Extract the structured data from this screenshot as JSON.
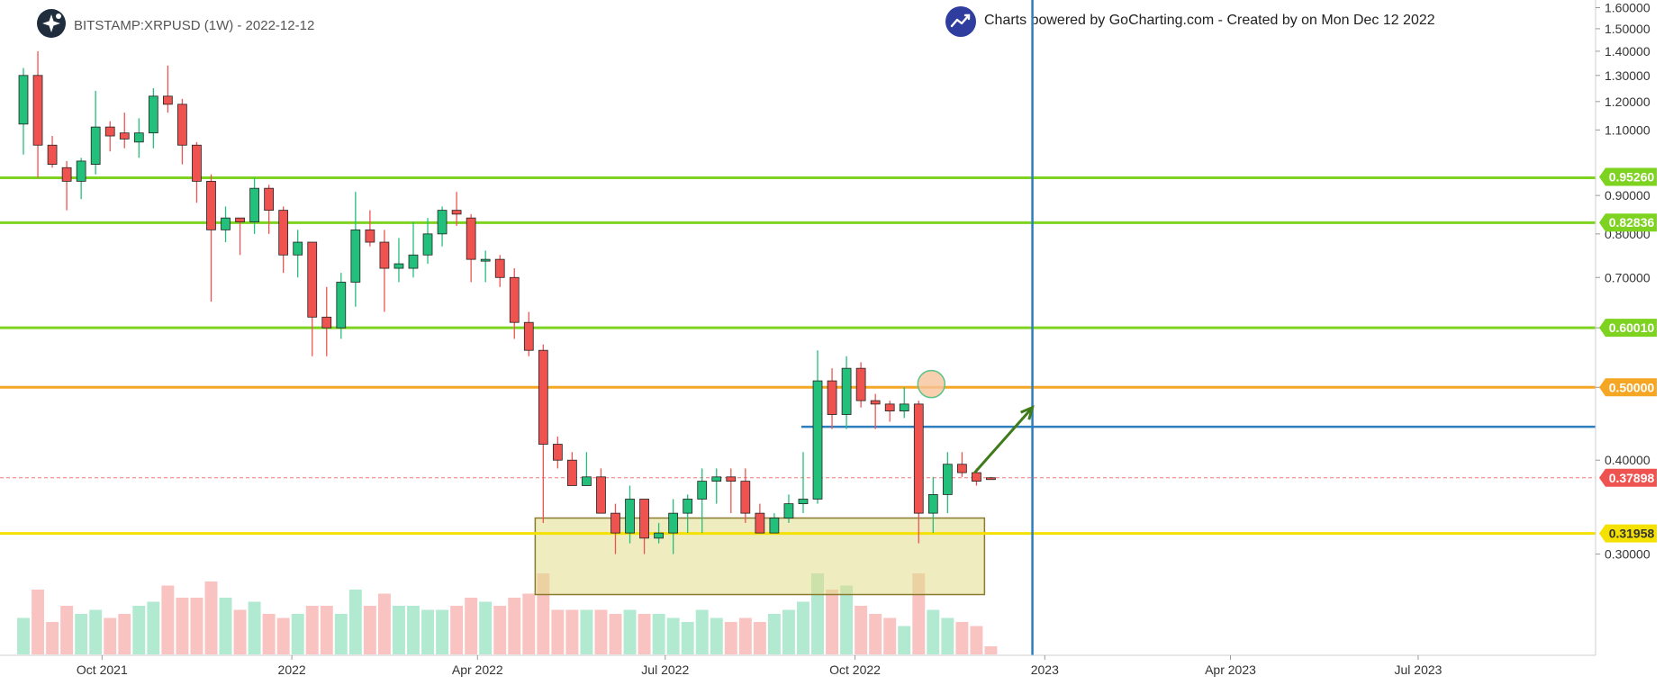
{
  "header": {
    "symbol": "BITSTAMP:XRPUSD (1W) - 2022-12-12",
    "credit": "Charts powered by GoCharting.com - Created by  on Mon Dec 12 2022"
  },
  "colors": {
    "up": "#22c07a",
    "down": "#ef5350",
    "support_green": "#7ed321",
    "resistance_orange": "#f5a623",
    "support_yellow": "#f5e100",
    "blue_line": "#2e7dbd",
    "zone_fill": "#e2dc8a",
    "zone_stroke": "#8a7b30",
    "arrow": "#3f7a1b",
    "marker": "#f7c49b",
    "marker_stroke": "#5cc28a"
  },
  "chart_data": {
    "type": "candlestick",
    "title": "BITSTAMP:XRPUSD (1W) - 2022-12-12",
    "interval": "1W",
    "y_axis": {
      "scale": "log",
      "range": [
        0.22,
        1.62
      ],
      "ticks": [
        "1.60000",
        "1.50000",
        "1.40000",
        "1.30000",
        "1.20000",
        "1.10000",
        "0.90000",
        "0.80000",
        "0.70000",
        "0.60000",
        "0.50000",
        "0.40000",
        "0.30000"
      ],
      "tick_values": [
        1.6,
        1.5,
        1.4,
        1.3,
        1.2,
        1.1,
        0.9,
        0.8,
        0.7,
        0.6,
        0.5,
        0.4,
        0.3
      ]
    },
    "x_axis": {
      "range": [
        "2021-08-23",
        "2023-09-25"
      ],
      "ticks": [
        {
          "label": "Oct 2021",
          "date": "2021-10-01"
        },
        {
          "label": "2022",
          "date": "2022-01-01"
        },
        {
          "label": "Apr 2022",
          "date": "2022-04-01"
        },
        {
          "label": "Jul 2022",
          "date": "2022-07-01"
        },
        {
          "label": "Oct 2022",
          "date": "2022-10-01"
        },
        {
          "label": "2023",
          "date": "2023-01-01"
        },
        {
          "label": "Apr 2023",
          "date": "2023-04-01"
        },
        {
          "label": "Jul 2023",
          "date": "2023-07-01"
        }
      ]
    },
    "first_candle_date": "2021-08-23",
    "candles": [
      {
        "o": 1.12,
        "h": 1.33,
        "l": 1.02,
        "c": 1.3,
        "v": 0.45
      },
      {
        "o": 1.3,
        "h": 1.4,
        "l": 0.95,
        "c": 1.05,
        "v": 0.8
      },
      {
        "o": 1.05,
        "h": 1.08,
        "l": 0.98,
        "c": 0.99,
        "v": 0.4
      },
      {
        "o": 0.98,
        "h": 1.0,
        "l": 0.86,
        "c": 0.94,
        "v": 0.6
      },
      {
        "o": 0.94,
        "h": 1.01,
        "l": 0.89,
        "c": 1.0,
        "v": 0.5
      },
      {
        "o": 0.99,
        "h": 1.24,
        "l": 0.96,
        "c": 1.11,
        "v": 0.55
      },
      {
        "o": 1.11,
        "h": 1.13,
        "l": 1.03,
        "c": 1.08,
        "v": 0.45
      },
      {
        "o": 1.09,
        "h": 1.16,
        "l": 1.04,
        "c": 1.07,
        "v": 0.5
      },
      {
        "o": 1.06,
        "h": 1.14,
        "l": 1.01,
        "c": 1.09,
        "v": 0.6
      },
      {
        "o": 1.09,
        "h": 1.25,
        "l": 1.04,
        "c": 1.22,
        "v": 0.65
      },
      {
        "o": 1.22,
        "h": 1.34,
        "l": 1.16,
        "c": 1.19,
        "v": 0.85
      },
      {
        "o": 1.19,
        "h": 1.21,
        "l": 0.99,
        "c": 1.05,
        "v": 0.7
      },
      {
        "o": 1.05,
        "h": 1.06,
        "l": 0.88,
        "c": 0.94,
        "v": 0.7
      },
      {
        "o": 0.94,
        "h": 0.96,
        "l": 0.65,
        "c": 0.81,
        "v": 0.9
      },
      {
        "o": 0.81,
        "h": 0.87,
        "l": 0.78,
        "c": 0.84,
        "v": 0.7
      },
      {
        "o": 0.84,
        "h": 0.84,
        "l": 0.75,
        "c": 0.83,
        "v": 0.55
      },
      {
        "o": 0.83,
        "h": 0.95,
        "l": 0.8,
        "c": 0.92,
        "v": 0.65
      },
      {
        "o": 0.92,
        "h": 0.93,
        "l": 0.8,
        "c": 0.86,
        "v": 0.5
      },
      {
        "o": 0.86,
        "h": 0.87,
        "l": 0.71,
        "c": 0.75,
        "v": 0.45
      },
      {
        "o": 0.75,
        "h": 0.81,
        "l": 0.7,
        "c": 0.78,
        "v": 0.5
      },
      {
        "o": 0.78,
        "h": 0.78,
        "l": 0.55,
        "c": 0.62,
        "v": 0.6
      },
      {
        "o": 0.62,
        "h": 0.68,
        "l": 0.55,
        "c": 0.6,
        "v": 0.6
      },
      {
        "o": 0.6,
        "h": 0.71,
        "l": 0.58,
        "c": 0.69,
        "v": 0.5
      },
      {
        "o": 0.69,
        "h": 0.91,
        "l": 0.64,
        "c": 0.81,
        "v": 0.8
      },
      {
        "o": 0.81,
        "h": 0.86,
        "l": 0.77,
        "c": 0.78,
        "v": 0.6
      },
      {
        "o": 0.78,
        "h": 0.81,
        "l": 0.63,
        "c": 0.72,
        "v": 0.75
      },
      {
        "o": 0.72,
        "h": 0.79,
        "l": 0.69,
        "c": 0.73,
        "v": 0.6
      },
      {
        "o": 0.72,
        "h": 0.83,
        "l": 0.7,
        "c": 0.75,
        "v": 0.6
      },
      {
        "o": 0.75,
        "h": 0.84,
        "l": 0.73,
        "c": 0.8,
        "v": 0.55
      },
      {
        "o": 0.8,
        "h": 0.87,
        "l": 0.77,
        "c": 0.86,
        "v": 0.55
      },
      {
        "o": 0.86,
        "h": 0.91,
        "l": 0.82,
        "c": 0.85,
        "v": 0.6
      },
      {
        "o": 0.84,
        "h": 0.85,
        "l": 0.69,
        "c": 0.74,
        "v": 0.7
      },
      {
        "o": 0.74,
        "h": 0.76,
        "l": 0.69,
        "c": 0.74,
        "v": 0.65
      },
      {
        "o": 0.74,
        "h": 0.75,
        "l": 0.68,
        "c": 0.7,
        "v": 0.6
      },
      {
        "o": 0.7,
        "h": 0.72,
        "l": 0.58,
        "c": 0.61,
        "v": 0.7
      },
      {
        "o": 0.61,
        "h": 0.63,
        "l": 0.55,
        "c": 0.56,
        "v": 0.75
      },
      {
        "o": 0.56,
        "h": 0.57,
        "l": 0.33,
        "c": 0.42,
        "v": 1.0
      },
      {
        "o": 0.42,
        "h": 0.43,
        "l": 0.39,
        "c": 0.4,
        "v": 0.55
      },
      {
        "o": 0.4,
        "h": 0.41,
        "l": 0.37,
        "c": 0.37,
        "v": 0.55
      },
      {
        "o": 0.37,
        "h": 0.41,
        "l": 0.37,
        "c": 0.38,
        "v": 0.55
      },
      {
        "o": 0.38,
        "h": 0.39,
        "l": 0.34,
        "c": 0.34,
        "v": 0.55
      },
      {
        "o": 0.34,
        "h": 0.35,
        "l": 0.3,
        "c": 0.32,
        "v": 0.5
      },
      {
        "o": 0.32,
        "h": 0.37,
        "l": 0.31,
        "c": 0.355,
        "v": 0.55
      },
      {
        "o": 0.355,
        "h": 0.355,
        "l": 0.3,
        "c": 0.315,
        "v": 0.5
      },
      {
        "o": 0.315,
        "h": 0.33,
        "l": 0.31,
        "c": 0.32,
        "v": 0.5
      },
      {
        "o": 0.32,
        "h": 0.355,
        "l": 0.3,
        "c": 0.34,
        "v": 0.45
      },
      {
        "o": 0.34,
        "h": 0.36,
        "l": 0.32,
        "c": 0.355,
        "v": 0.4
      },
      {
        "o": 0.355,
        "h": 0.39,
        "l": 0.32,
        "c": 0.375,
        "v": 0.55
      },
      {
        "o": 0.375,
        "h": 0.39,
        "l": 0.35,
        "c": 0.38,
        "v": 0.45
      },
      {
        "o": 0.38,
        "h": 0.39,
        "l": 0.34,
        "c": 0.375,
        "v": 0.4
      },
      {
        "o": 0.375,
        "h": 0.39,
        "l": 0.33,
        "c": 0.34,
        "v": 0.45
      },
      {
        "o": 0.34,
        "h": 0.35,
        "l": 0.32,
        "c": 0.32,
        "v": 0.4
      },
      {
        "o": 0.32,
        "h": 0.34,
        "l": 0.32,
        "c": 0.335,
        "v": 0.5
      },
      {
        "o": 0.335,
        "h": 0.36,
        "l": 0.33,
        "c": 0.35,
        "v": 0.55
      },
      {
        "o": 0.35,
        "h": 0.41,
        "l": 0.34,
        "c": 0.355,
        "v": 0.65
      },
      {
        "o": 0.355,
        "h": 0.56,
        "l": 0.35,
        "c": 0.51,
        "v": 1.0
      },
      {
        "o": 0.51,
        "h": 0.53,
        "l": 0.44,
        "c": 0.46,
        "v": 0.8
      },
      {
        "o": 0.46,
        "h": 0.55,
        "l": 0.44,
        "c": 0.53,
        "v": 0.85
      },
      {
        "o": 0.53,
        "h": 0.54,
        "l": 0.47,
        "c": 0.48,
        "v": 0.6
      },
      {
        "o": 0.48,
        "h": 0.49,
        "l": 0.44,
        "c": 0.475,
        "v": 0.5
      },
      {
        "o": 0.475,
        "h": 0.48,
        "l": 0.45,
        "c": 0.465,
        "v": 0.45
      },
      {
        "o": 0.465,
        "h": 0.5,
        "l": 0.455,
        "c": 0.475,
        "v": 0.35
      },
      {
        "o": 0.475,
        "h": 0.48,
        "l": 0.31,
        "c": 0.34,
        "v": 1.0
      },
      {
        "o": 0.34,
        "h": 0.38,
        "l": 0.32,
        "c": 0.36,
        "v": 0.55
      },
      {
        "o": 0.36,
        "h": 0.41,
        "l": 0.34,
        "c": 0.395,
        "v": 0.45
      },
      {
        "o": 0.395,
        "h": 0.41,
        "l": 0.38,
        "c": 0.385,
        "v": 0.4
      },
      {
        "o": 0.385,
        "h": 0.39,
        "l": 0.37,
        "c": 0.375,
        "v": 0.35
      },
      {
        "o": 0.379,
        "h": 0.38,
        "l": 0.377,
        "c": 0.37898,
        "v": 0.1
      }
    ],
    "horizontal_lines": [
      {
        "name": "support-green-1",
        "price": 0.95,
        "color": "#7ed321"
      },
      {
        "name": "support-green-2",
        "price": 0.828,
        "color": "#7ed321"
      },
      {
        "name": "support-green-3",
        "price": 0.6,
        "color": "#7ed321"
      },
      {
        "name": "resistance-orange",
        "price": 0.5,
        "color": "#f5a623"
      },
      {
        "name": "support-yellow",
        "price": 0.3196,
        "color": "#f5e100"
      }
    ],
    "blue_horizontal": {
      "price": 0.443,
      "from": "2022-09-05"
    },
    "blue_vertical": {
      "date": "2022-12-26"
    },
    "current_price_line": {
      "price": 0.37898
    },
    "zone": {
      "from": "2022-05-02",
      "to": "2022-11-28",
      "high": 0.335,
      "low": 0.265
    },
    "arrow": {
      "from_date": "2022-11-28",
      "from_price": 0.385,
      "to_date": "2022-12-26",
      "to_price": 0.47
    },
    "circle_marker": {
      "date": "2022-11-07",
      "price": 0.505
    },
    "price_badges": [
      {
        "label": "0.95260",
        "price": 0.9526,
        "color": "#7ed321",
        "text_color": "#ffffff"
      },
      {
        "label": "0.82836",
        "price": 0.82836,
        "color": "#7ed321",
        "text_color": "#ffffff"
      },
      {
        "label": "0.60010",
        "price": 0.6001,
        "color": "#7ed321",
        "text_color": "#ffffff"
      },
      {
        "label": "0.50000",
        "price": 0.5,
        "color": "#f5a623",
        "text_color": "#ffffff"
      },
      {
        "label": "0.37898",
        "price": 0.37898,
        "color": "#ef5350",
        "text_color": "#ffffff"
      },
      {
        "label": "0.31958",
        "price": 0.31958,
        "color": "#f5e100",
        "text_color": "#333333"
      }
    ]
  }
}
